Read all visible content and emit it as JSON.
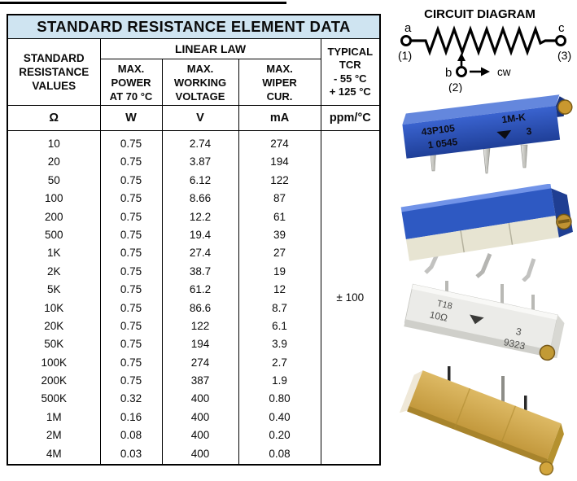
{
  "colors": {
    "title_bg": "#cfe4f1",
    "line_black": "#000000",
    "trimmer_blue": "#2d57c2",
    "trimmer_blue_dark": "#1f3f98",
    "trimmer_blue_light": "#6487dd",
    "ceramic_white": "#e7e4d2",
    "body_white": "#ebebe8",
    "gold_body": "#cfa94e",
    "screw_gold": "#c09232",
    "pin_silver": "#c9c9c5",
    "pin_dark": "#2a2a2a"
  },
  "table": {
    "title": "STANDARD RESISTANCE ELEMENT DATA",
    "linear_law_label": "LINEAR LAW",
    "col1_header": "STANDARD\nRESISTANCE\nVALUES",
    "col2_header": "MAX.\nPOWER\nAT 70 °C",
    "col3_header": "MAX.\nWORKING\nVOLTAGE",
    "col4_header": "MAX.\nWIPER\nCUR.",
    "col5_header": "TYPICAL\nTCR\n- 55 °C\n+ 125 °C",
    "units": [
      "Ω",
      "W",
      "V",
      "mA",
      "ppm/°C"
    ],
    "tcr_value": "± 100",
    "rows": [
      {
        "r": "10",
        "w": "0.75",
        "v": "2.74",
        "ma": "274"
      },
      {
        "r": "20",
        "w": "0.75",
        "v": "3.87",
        "ma": "194"
      },
      {
        "r": "50",
        "w": "0.75",
        "v": "6.12",
        "ma": "122"
      },
      {
        "r": "100",
        "w": "0.75",
        "v": "8.66",
        "ma": "87"
      },
      {
        "r": "200",
        "w": "0.75",
        "v": "12.2",
        "ma": "61"
      },
      {
        "r": "500",
        "w": "0.75",
        "v": "19.4",
        "ma": "39"
      },
      {
        "r": "1K",
        "w": "0.75",
        "v": "27.4",
        "ma": "27"
      },
      {
        "r": "2K",
        "w": "0.75",
        "v": "38.7",
        "ma": "19"
      },
      {
        "r": "5K",
        "w": "0.75",
        "v": "61.2",
        "ma": "12"
      },
      {
        "r": "10K",
        "w": "0.75",
        "v": "86.6",
        "ma": "8.7"
      },
      {
        "r": "20K",
        "w": "0.75",
        "v": "122",
        "ma": "6.1"
      },
      {
        "r": "50K",
        "w": "0.75",
        "v": "194",
        "ma": "3.9"
      },
      {
        "r": "100K",
        "w": "0.75",
        "v": "274",
        "ma": "2.7"
      },
      {
        "r": "200K",
        "w": "0.75",
        "v": "387",
        "ma": "1.9"
      },
      {
        "r": "500K",
        "w": "0.32",
        "v": "400",
        "ma": "0.80"
      },
      {
        "r": "1M",
        "w": "0.16",
        "v": "400",
        "ma": "0.40"
      },
      {
        "r": "2M",
        "w": "0.08",
        "v": "400",
        "ma": "0.20"
      },
      {
        "r": "4M",
        "w": "0.03",
        "v": "400",
        "ma": "0.08"
      }
    ]
  },
  "circuit": {
    "title": "CIRCUIT DIAGRAM",
    "terminal_a_label": "a",
    "terminal_a_pin": "(1)",
    "terminal_b_label": "b",
    "terminal_b_pin": "(2)",
    "terminal_c_label": "c",
    "terminal_c_pin": "(3)",
    "cw_label": "cw"
  },
  "photos": {
    "blue_side": {
      "marking_model": "43P105",
      "marking_code": "1M-K",
      "marking_lot": "1  0545",
      "marking_num": "3"
    },
    "white_trimmer": {
      "marking_type": "T18",
      "marking_value": "10Ω",
      "marking_num": "3",
      "marking_date": "9323"
    }
  }
}
